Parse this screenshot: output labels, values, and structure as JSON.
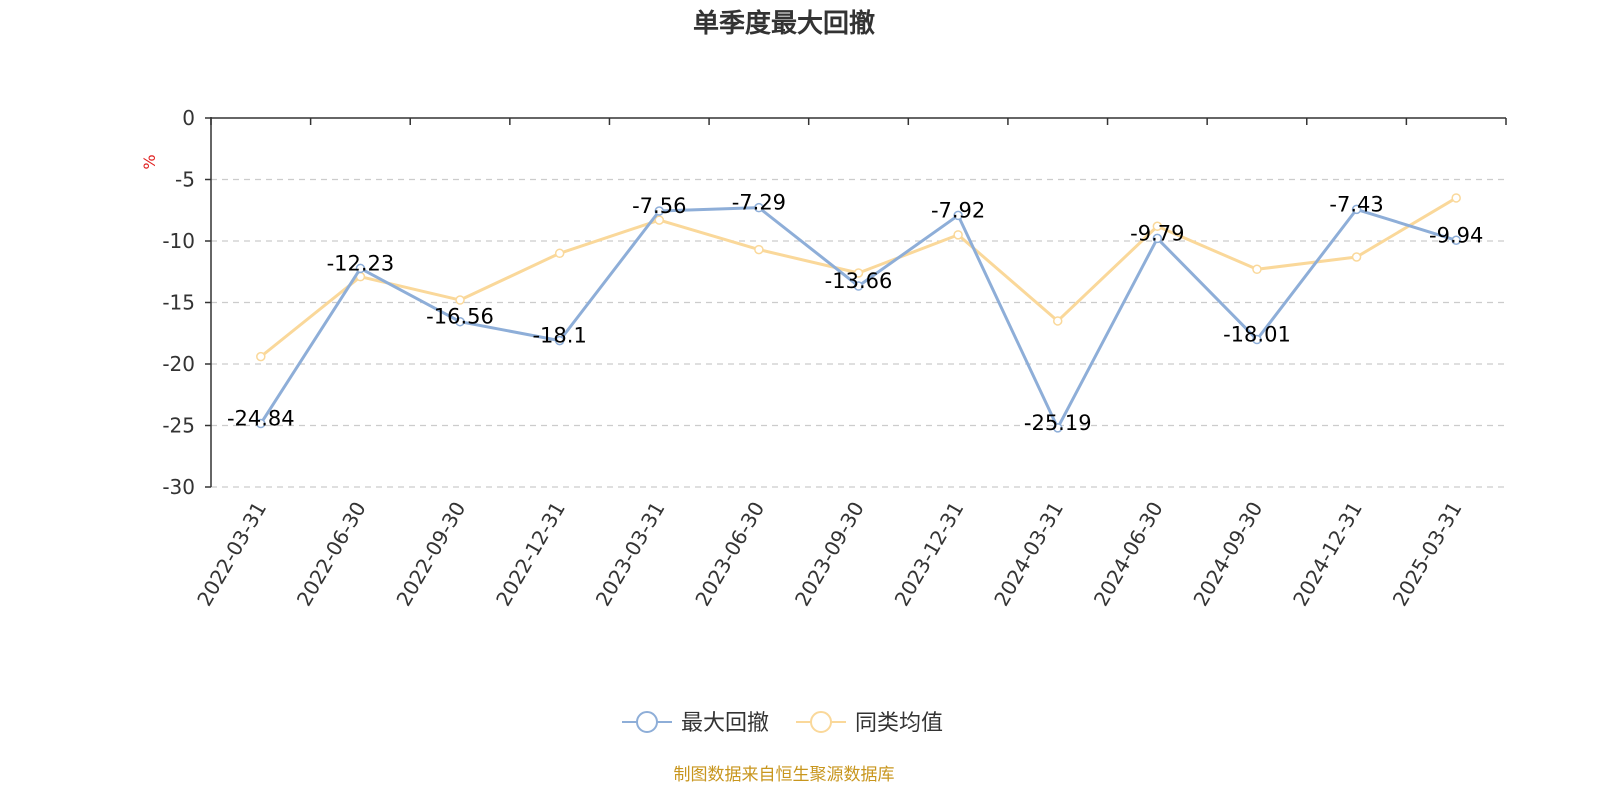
{
  "chart_data": {
    "type": "line",
    "title": "单季度最大回撤",
    "ylabel": "%",
    "categories": [
      "2022-03-31",
      "2022-06-30",
      "2022-09-30",
      "2022-12-31",
      "2023-03-31",
      "2023-06-30",
      "2023-09-30",
      "2023-12-31",
      "2024-03-31",
      "2024-06-30",
      "2024-09-30",
      "2024-12-31",
      "2025-03-31"
    ],
    "ylim": [
      -30,
      0
    ],
    "yticks": [
      "0",
      "-5",
      "-10",
      "-15",
      "-20",
      "-25",
      "-30"
    ],
    "grid": true,
    "legend_position": "bottom-center",
    "series": [
      {
        "name": "最大回撤",
        "color": "#8eaed8",
        "values": [
          -24.84,
          -12.23,
          -16.56,
          -18.1,
          -7.56,
          -7.29,
          -13.66,
          -7.92,
          -25.19,
          -9.79,
          -18.01,
          -7.43,
          -9.94
        ],
        "labels": [
          "-24.84",
          "-12.23",
          "-16.56",
          "-18.1",
          "-7.56",
          "-7.29",
          "-13.66",
          "-7.92",
          "-25.19",
          "-9.79",
          "-18.01",
          "-7.43",
          "-9.94"
        ]
      },
      {
        "name": "同类均值",
        "color": "#fad89a",
        "values": [
          -19.4,
          -12.9,
          -14.8,
          -11.0,
          -8.3,
          -10.7,
          -12.6,
          -9.5,
          -16.5,
          -8.8,
          -12.3,
          -11.3,
          -6.5
        ]
      }
    ]
  },
  "footer": {
    "source": "制图数据来自恒生聚源数据库"
  }
}
